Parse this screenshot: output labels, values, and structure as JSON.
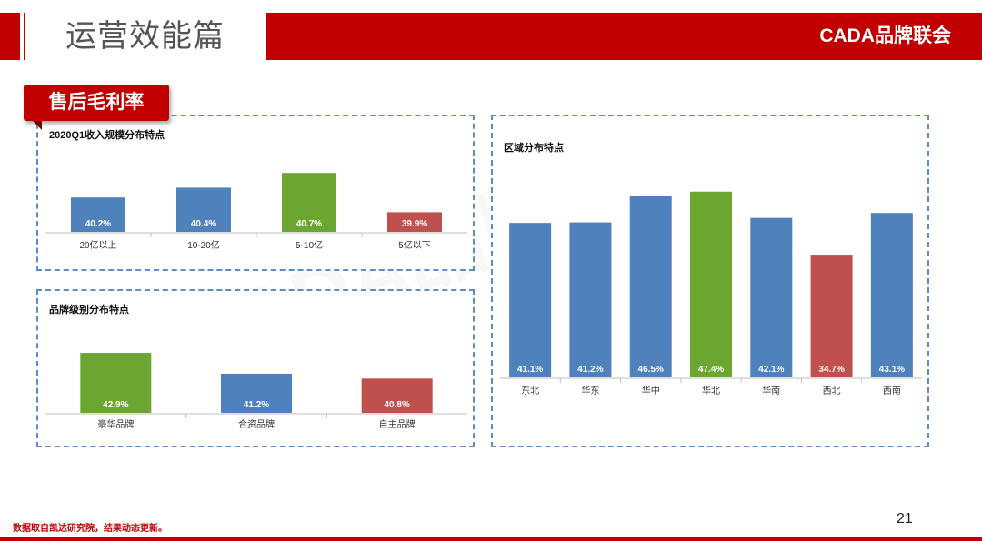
{
  "header": {
    "title": "运营效能篇",
    "brand": "CADA品牌联会"
  },
  "section_tag": "售后毛利率",
  "watermark": "CADA品牌联会",
  "footer": {
    "note": "数据取自凯达研究院，结果动态更新。",
    "page_number": "21"
  },
  "colors": {
    "blue": "#4f81bd",
    "green": "#6aa630",
    "red": "#c0504d",
    "accent": "#c00000"
  },
  "chart_data": [
    {
      "id": "revenue",
      "type": "bar",
      "title": "2020Q1收入规模分布特点",
      "categories": [
        "20亿以上",
        "10-20亿",
        "5-10亿",
        "5亿以下"
      ],
      "values": [
        40.2,
        40.4,
        40.7,
        39.9
      ],
      "labels": [
        "40.2%",
        "40.4%",
        "40.7%",
        "39.9%"
      ],
      "colors": [
        "blue",
        "blue",
        "green",
        "red"
      ],
      "ylim": [
        39.5,
        41.0
      ]
    },
    {
      "id": "brand",
      "type": "bar",
      "title": "品牌级别分布特点",
      "categories": [
        "豪华品牌",
        "合资品牌",
        "自主品牌"
      ],
      "values": [
        42.9,
        41.2,
        40.8
      ],
      "labels": [
        "42.9%",
        "41.2%",
        "40.8%"
      ],
      "colors": [
        "green",
        "blue",
        "red"
      ],
      "ylim": [
        38.0,
        43.5
      ]
    },
    {
      "id": "region",
      "type": "bar",
      "title": "区域分布特点",
      "categories": [
        "东北",
        "华东",
        "华中",
        "华北",
        "华南",
        "西北",
        "西南"
      ],
      "values": [
        41.1,
        41.2,
        46.5,
        47.4,
        42.1,
        34.7,
        43.1
      ],
      "labels": [
        "41.1%",
        "41.2%",
        "46.5%",
        "47.4%",
        "42.1%",
        "34.7%",
        "43.1%"
      ],
      "colors": [
        "blue",
        "blue",
        "blue",
        "green",
        "blue",
        "red",
        "blue"
      ],
      "ylim": [
        10,
        49
      ]
    }
  ]
}
